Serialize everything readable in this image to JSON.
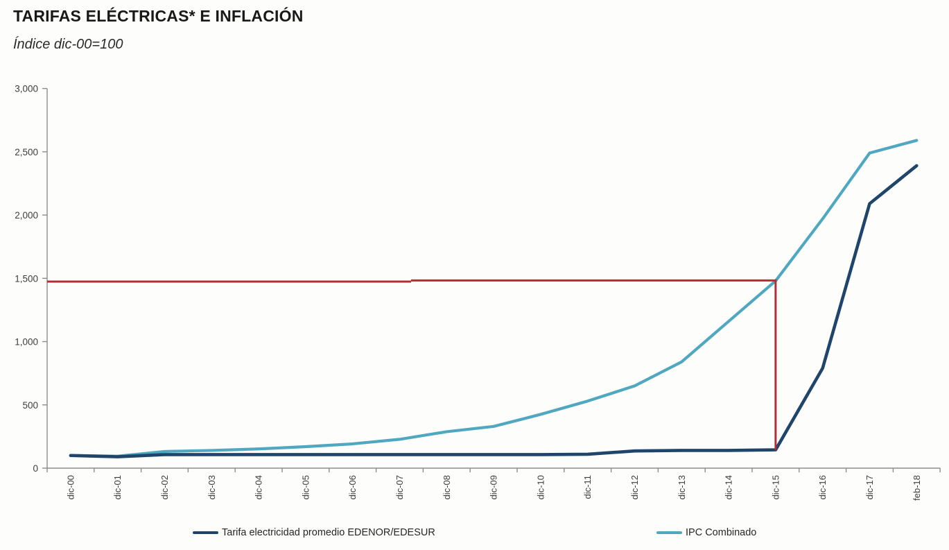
{
  "header": {
    "title": "TARIFAS ELÉCTRICAS* E INFLACIÓN",
    "subtitle": "Índice dic-00=100"
  },
  "chart_data": {
    "type": "line",
    "categories": [
      "dic-00",
      "dic-01",
      "dic-02",
      "dic-03",
      "dic-04",
      "dic-05",
      "dic-06",
      "dic-07",
      "dic-08",
      "dic-09",
      "dic-10",
      "dic-11",
      "dic-12",
      "dic-13",
      "dic-14",
      "dic-15",
      "dic-16",
      "dic-17",
      "feb-18"
    ],
    "series": [
      {
        "name": "Tarifa electricidad promedio EDENOR/EDESUR",
        "color": "#20456a",
        "values": [
          100,
          90,
          107,
          107,
          107,
          107,
          107,
          107,
          107,
          107,
          107,
          110,
          136,
          140,
          140,
          145,
          790,
          2090,
          2390
        ]
      },
      {
        "name": "IPC Combinado",
        "color": "#4fa8bf",
        "values": [
          100,
          95,
          132,
          140,
          152,
          170,
          192,
          228,
          288,
          330,
          425,
          530,
          650,
          840,
          1160,
          1480,
          1970,
          2490,
          2590
        ]
      }
    ],
    "title": "TARIFAS ELÉCTRICAS* E INFLACIÓN",
    "subtitle": "Índice dic-00=100",
    "xlabel": "",
    "ylabel": "",
    "ylim": [
      0,
      3000
    ],
    "yticks": [
      0,
      500,
      1000,
      1500,
      2000,
      2500,
      3000
    ],
    "ytick_labels": [
      "0",
      "500",
      "1,000",
      "1,500",
      "2,000",
      "2,500",
      "3,000"
    ],
    "grid": false,
    "legend_position": "bottom",
    "annotation": {
      "type": "reference-line",
      "value": 1480,
      "at_category": "dic-15",
      "color": "#b72b35"
    }
  }
}
